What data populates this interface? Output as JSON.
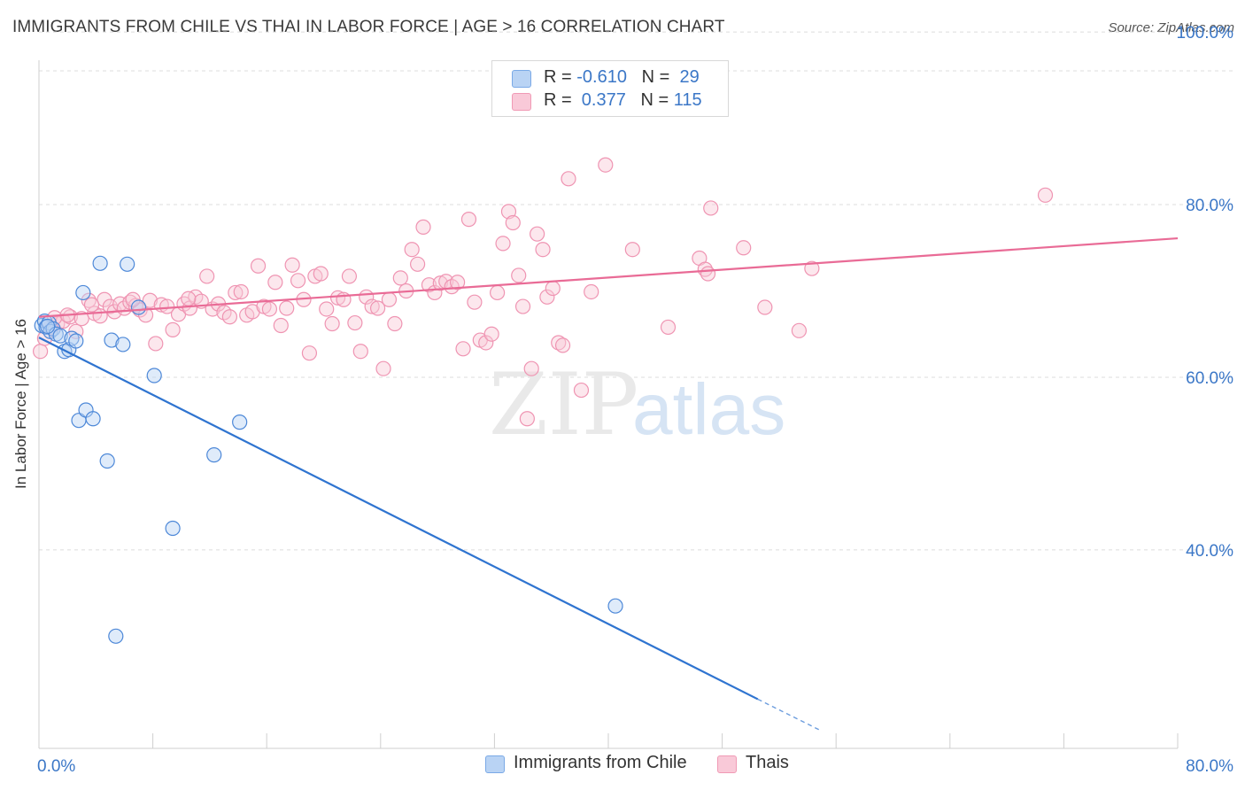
{
  "header": {
    "title": "IMMIGRANTS FROM CHILE VS THAI IN LABOR FORCE | AGE > 16 CORRELATION CHART",
    "source": "Source: ZipAtlas.com"
  },
  "legend": {
    "rows": [
      {
        "r_label": "R = ",
        "r_value": "-0.610",
        "n_label": "N = ",
        "n_value": "29",
        "color": "#a9c8f0"
      },
      {
        "r_label": "R = ",
        "r_value": " 0.377",
        "n_label": "N = ",
        "n_value": "115",
        "color": "#f6b8cb"
      }
    ]
  },
  "watermark": {
    "zip": "ZIP",
    "atlas": "atlas"
  },
  "chart_data": {
    "type": "scatter",
    "title": "IMMIGRANTS FROM CHILE VS THAI IN LABOR FORCE | AGE > 16 CORRELATION CHART",
    "xlabel": "",
    "ylabel": "In Labor Force | Age > 16",
    "xlim": [
      0,
      80
    ],
    "ylim": [
      20,
      100
    ],
    "x_tick_labels": [
      "0.0%",
      "80.0%"
    ],
    "y_ticks": [
      40,
      60,
      80,
      100
    ],
    "y_tick_labels": [
      "40.0%",
      "60.0%",
      "80.0%",
      "100.0%"
    ],
    "grid": "horizontal dashed",
    "legend_position": "top-center",
    "series": [
      {
        "name": "Immigrants from Chile",
        "color": "#7aa9e6",
        "line_color": "#2f74d0",
        "trend": {
          "x": [
            0,
            50.5
          ],
          "y": [
            64.6,
            22.7
          ],
          "dashed_to": [
            55,
            19.0
          ]
        },
        "points": [
          [
            0.2,
            66.0
          ],
          [
            0.4,
            66.5
          ],
          [
            0.5,
            65.8
          ],
          [
            0.7,
            66.3
          ],
          [
            0.8,
            65.3
          ],
          [
            1.0,
            65.6
          ],
          [
            1.2,
            65.0
          ],
          [
            1.5,
            64.8
          ],
          [
            1.8,
            63.0
          ],
          [
            2.1,
            63.2
          ],
          [
            2.3,
            64.5
          ],
          [
            2.6,
            64.2
          ],
          [
            3.1,
            69.8
          ],
          [
            4.3,
            73.2
          ],
          [
            6.2,
            73.1
          ],
          [
            5.1,
            64.3
          ],
          [
            5.9,
            63.8
          ],
          [
            7.0,
            68.1
          ],
          [
            8.1,
            60.2
          ],
          [
            2.8,
            55.0
          ],
          [
            3.3,
            56.2
          ],
          [
            3.8,
            55.2
          ],
          [
            4.8,
            50.3
          ],
          [
            12.3,
            51.0
          ],
          [
            14.1,
            54.8
          ],
          [
            9.4,
            42.5
          ],
          [
            5.4,
            30.0
          ],
          [
            40.5,
            33.5
          ],
          [
            0.6,
            65.9
          ]
        ]
      },
      {
        "name": "Thais",
        "color": "#f4a7bf",
        "line_color": "#e96b96",
        "trend": {
          "x": [
            0,
            80
          ],
          "y": [
            67.0,
            76.1
          ]
        },
        "points": [
          [
            0.1,
            63.0
          ],
          [
            0.4,
            64.5
          ],
          [
            0.8,
            65.8
          ],
          [
            1.3,
            66.2
          ],
          [
            1.7,
            66.5
          ],
          [
            2.2,
            67.0
          ],
          [
            2.6,
            65.3
          ],
          [
            3.0,
            66.8
          ],
          [
            3.5,
            68.9
          ],
          [
            3.9,
            67.4
          ],
          [
            4.3,
            67.1
          ],
          [
            4.6,
            69.0
          ],
          [
            5.0,
            68.2
          ],
          [
            5.3,
            67.6
          ],
          [
            5.7,
            68.5
          ],
          [
            6.0,
            68.0
          ],
          [
            6.4,
            68.7
          ],
          [
            6.8,
            68.3
          ],
          [
            7.1,
            67.8
          ],
          [
            7.5,
            67.2
          ],
          [
            7.8,
            68.9
          ],
          [
            8.2,
            63.9
          ],
          [
            8.6,
            68.4
          ],
          [
            9.0,
            68.2
          ],
          [
            9.4,
            65.5
          ],
          [
            9.8,
            67.3
          ],
          [
            10.2,
            68.5
          ],
          [
            10.6,
            68.0
          ],
          [
            11.0,
            69.3
          ],
          [
            11.4,
            68.8
          ],
          [
            11.8,
            71.7
          ],
          [
            12.2,
            67.9
          ],
          [
            12.6,
            68.5
          ],
          [
            13.0,
            67.5
          ],
          [
            13.4,
            67.0
          ],
          [
            13.8,
            69.8
          ],
          [
            14.2,
            69.9
          ],
          [
            14.6,
            67.2
          ],
          [
            15.0,
            67.6
          ],
          [
            15.4,
            72.9
          ],
          [
            15.8,
            68.2
          ],
          [
            16.2,
            67.9
          ],
          [
            16.6,
            71.0
          ],
          [
            17.0,
            66.0
          ],
          [
            17.4,
            68.0
          ],
          [
            17.8,
            73.0
          ],
          [
            18.2,
            71.2
          ],
          [
            18.6,
            69.0
          ],
          [
            19.0,
            62.8
          ],
          [
            19.4,
            71.7
          ],
          [
            19.8,
            72.0
          ],
          [
            20.2,
            67.9
          ],
          [
            20.6,
            66.2
          ],
          [
            21.0,
            69.2
          ],
          [
            21.4,
            69.0
          ],
          [
            21.8,
            71.7
          ],
          [
            22.2,
            66.3
          ],
          [
            22.6,
            63.0
          ],
          [
            23.0,
            69.3
          ],
          [
            23.4,
            68.2
          ],
          [
            23.8,
            68.0
          ],
          [
            24.2,
            61.0
          ],
          [
            24.6,
            69.0
          ],
          [
            25.0,
            66.2
          ],
          [
            25.4,
            71.5
          ],
          [
            25.8,
            70.0
          ],
          [
            26.2,
            74.8
          ],
          [
            26.6,
            73.1
          ],
          [
            27.0,
            77.4
          ],
          [
            27.4,
            70.7
          ],
          [
            27.8,
            69.8
          ],
          [
            28.2,
            70.9
          ],
          [
            28.6,
            71.1
          ],
          [
            29.0,
            70.5
          ],
          [
            29.4,
            71.0
          ],
          [
            29.8,
            63.3
          ],
          [
            30.2,
            78.3
          ],
          [
            30.6,
            68.7
          ],
          [
            31.0,
            64.3
          ],
          [
            31.4,
            64.0
          ],
          [
            31.8,
            65.0
          ],
          [
            32.2,
            69.8
          ],
          [
            32.6,
            75.5
          ],
          [
            33.0,
            79.2
          ],
          [
            33.3,
            77.9
          ],
          [
            33.7,
            71.8
          ],
          [
            34.0,
            68.2
          ],
          [
            34.3,
            55.2
          ],
          [
            34.6,
            61.0
          ],
          [
            35.0,
            76.6
          ],
          [
            35.4,
            74.8
          ],
          [
            35.7,
            69.3
          ],
          [
            36.1,
            70.3
          ],
          [
            36.5,
            64.0
          ],
          [
            36.8,
            63.7
          ],
          [
            37.2,
            83.0
          ],
          [
            38.1,
            58.5
          ],
          [
            38.8,
            69.9
          ],
          [
            39.8,
            84.6
          ],
          [
            41.7,
            74.8
          ],
          [
            44.2,
            65.8
          ],
          [
            46.4,
            73.8
          ],
          [
            46.8,
            72.5
          ],
          [
            47.0,
            72.0
          ],
          [
            47.2,
            79.6
          ],
          [
            49.5,
            75.0
          ],
          [
            51.0,
            68.1
          ],
          [
            53.4,
            65.4
          ],
          [
            54.3,
            72.6
          ],
          [
            70.7,
            81.1
          ],
          [
            1.1,
            66.9
          ],
          [
            2.0,
            67.2
          ],
          [
            3.7,
            68.4
          ],
          [
            6.6,
            69.0
          ],
          [
            10.5,
            69.1
          ]
        ]
      }
    ]
  }
}
